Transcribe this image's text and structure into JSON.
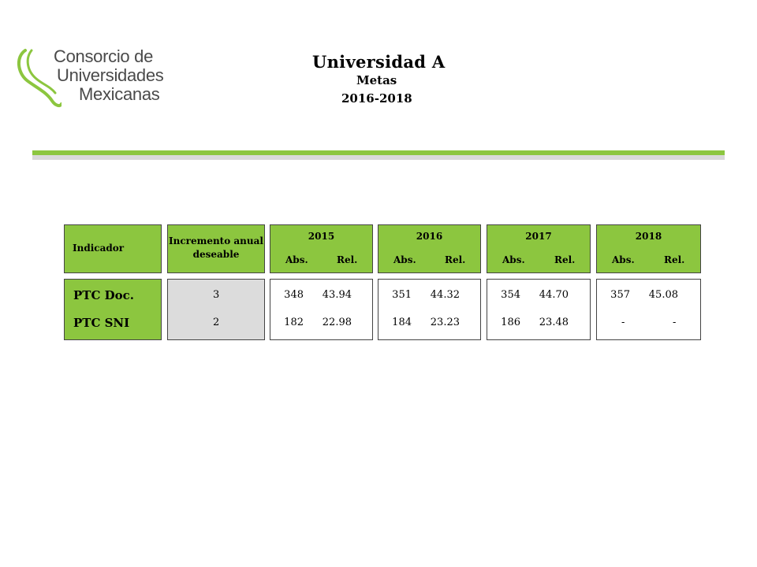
{
  "logo": {
    "line1": "Consorcio de",
    "line2": "Universidades",
    "line3": "Mexicanas",
    "colors": {
      "green": "#8cc63f",
      "grey": "#4a4a4a"
    }
  },
  "header": {
    "title": "Universidad A",
    "subtitle": "Metas",
    "years": "2016-2018"
  },
  "table": {
    "indicator_header": "Indicador",
    "increment_header": "Incremento anual deseable",
    "years": [
      {
        "year": "2015",
        "abs_label": "Abs.",
        "rel_label": "Rel."
      },
      {
        "year": "2016",
        "abs_label": "Abs.",
        "rel_label": "Rel."
      },
      {
        "year": "2017",
        "abs_label": "Abs.",
        "rel_label": "Rel."
      },
      {
        "year": "2018",
        "abs_label": "Abs.",
        "rel_label": "Rel."
      }
    ],
    "rows": [
      {
        "label": "PTC Doc.",
        "increment": "3",
        "values": [
          [
            "348",
            "43.94"
          ],
          [
            "351",
            "44.32"
          ],
          [
            "354",
            "44.70"
          ],
          [
            "357",
            "45.08"
          ]
        ]
      },
      {
        "label": "PTC SNI",
        "increment": "2",
        "values": [
          [
            "182",
            "22.98"
          ],
          [
            "184",
            "23.23"
          ],
          [
            "186",
            "23.48"
          ],
          [
            "-",
            "-"
          ]
        ]
      }
    ],
    "colors": {
      "header_green": "#8cc63f",
      "increment_grey": "#dcdcdc"
    }
  }
}
